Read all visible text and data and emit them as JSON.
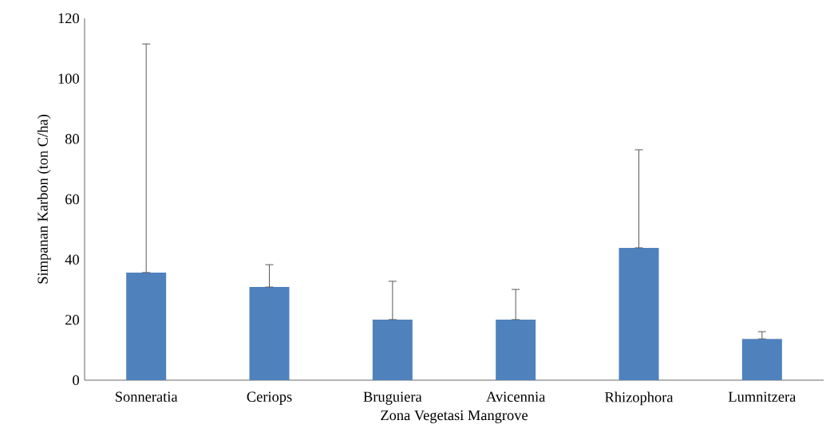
{
  "chart_data": {
    "type": "bar",
    "xlabel": "Zona Vegetasi Mangrove",
    "ylabel": "Simpanan Karbon (ton C/ha)",
    "categories": [
      "Sonneratia",
      "Ceriops",
      "Bruguiera",
      "Avicennia",
      "Rhizophora",
      "Lumnitzera"
    ],
    "values": [
      35.7,
      30.9,
      20.1,
      20.1,
      43.9,
      13.7
    ],
    "errors": [
      [
        35.7,
        111.5
      ],
      [
        30.9,
        38.3
      ],
      [
        20.1,
        32.8
      ],
      [
        20.1,
        30.1
      ],
      [
        43.9,
        76.4
      ],
      [
        13.7,
        16.1
      ]
    ],
    "color": "#4f81bd",
    "ylim": [
      0,
      120
    ],
    "yticks": [
      0,
      20,
      40,
      60,
      80,
      100,
      120
    ],
    "grid": false
  }
}
